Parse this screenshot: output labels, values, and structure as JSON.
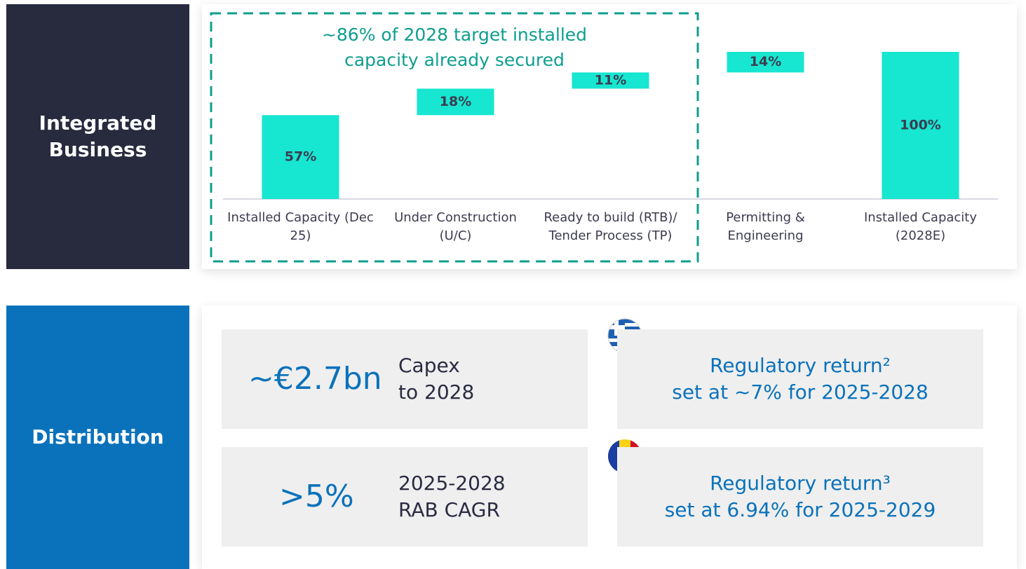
{
  "chart_data": {
    "type": "waterfall",
    "annotation": "~86% of 2028 target installed capacity already secured",
    "categories": [
      "Installed Capacity (Dec 25)",
      "Under Construction (U/C)",
      "Ready to build (RTB)/ Tender Process (TP)",
      "Permitting & Engineering",
      "Installed Capacity (2028E)"
    ],
    "values": [
      57,
      18,
      11,
      14,
      100
    ],
    "value_labels": [
      "57%",
      "18%",
      "11%",
      "14%",
      "100%"
    ],
    "measure": [
      "relative",
      "relative",
      "relative",
      "relative",
      "total"
    ],
    "color": "#17e6d0",
    "ylim": [
      0,
      100
    ]
  },
  "sections": {
    "integrated": "Integrated Business",
    "distribution": "Distribution"
  },
  "kpis": [
    {
      "value": "~€2.7bn",
      "label_lines": [
        "Capex",
        "to 2028"
      ]
    },
    {
      "value": ">5%",
      "label_lines": [
        "2025-2028",
        "RAB CAGR"
      ]
    }
  ],
  "returns": [
    {
      "lines": [
        "Regulatory return²",
        "set at ~7% for 2025-2028"
      ]
    },
    {
      "lines": [
        "Regulatory return³",
        "set at 6.94% for 2025-2029"
      ]
    }
  ]
}
